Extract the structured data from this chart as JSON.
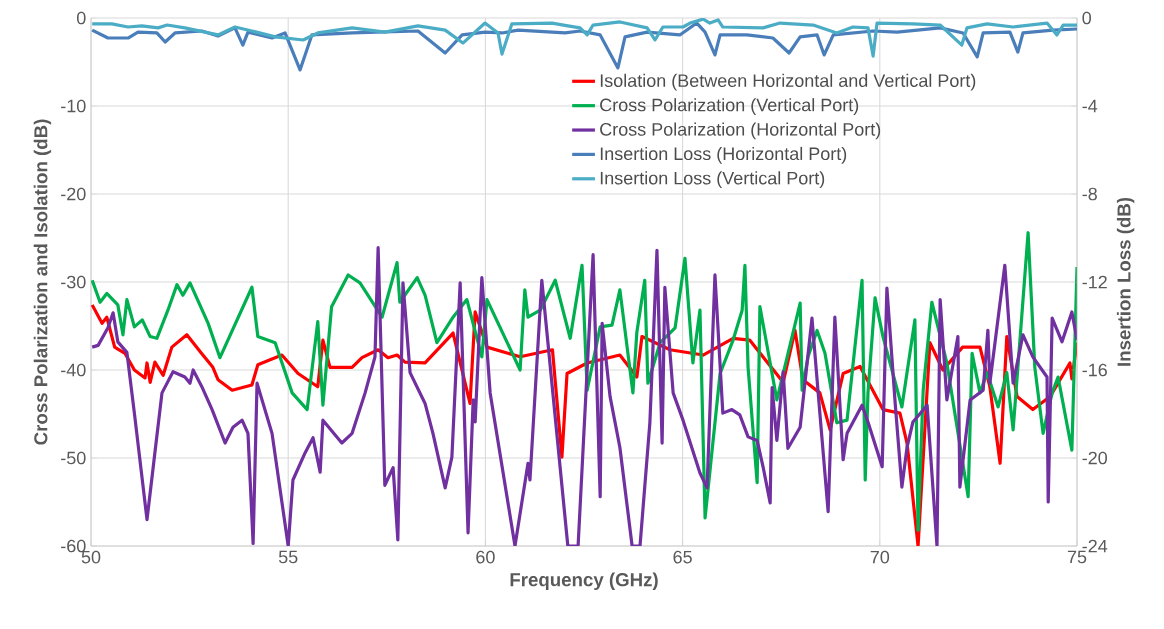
{
  "chart_data": {
    "type": "line",
    "xlabel": "Frequency (GHz)",
    "ylabel": "Cross Polarization and Isolation (dB)",
    "y2label": "Insertion Loss (dB)",
    "xlim": [
      50,
      75
    ],
    "xticks": [
      50,
      55,
      60,
      65,
      70,
      75
    ],
    "ylim": [
      -60,
      0
    ],
    "yticks": [
      -60,
      -50,
      -40,
      -30,
      -20,
      -10,
      0
    ],
    "y2lim": [
      -24,
      0
    ],
    "y2ticks": [
      -24,
      -20,
      -16,
      -12,
      -8,
      -4,
      0
    ],
    "grid": true,
    "legend": "top right",
    "marker": "none",
    "line_style": "solid",
    "series": [
      {
        "name": "Isolation (Between Horizontal and Vertical Port)",
        "color": "#ff0000",
        "x": [
          50.03,
          50.28,
          50.4,
          50.6,
          50.86,
          51.1,
          51.37,
          51.42,
          51.5,
          51.62,
          51.83,
          52.05,
          52.43,
          52.8,
          53.09,
          53.22,
          53.58,
          54.08,
          54.23,
          54.84,
          55.25,
          55.75,
          55.88,
          56.06,
          56.62,
          56.87,
          57.28,
          57.53,
          57.76,
          57.96,
          58.47,
          59.18,
          59.61,
          59.74,
          60.04,
          60.88,
          61.7,
          61.94,
          62.07,
          62.58,
          63.41,
          63.84,
          63.97,
          64.68,
          65.52,
          66.28,
          66.7,
          67.55,
          67.85,
          68.05,
          68.48,
          68.74,
          69.07,
          69.5,
          70.08,
          70.51,
          70.69,
          70.97,
          71.27,
          71.6,
          72.1,
          72.54,
          72.79,
          73.05,
          73.22,
          73.48,
          73.88,
          74.32,
          74.82,
          74.87,
          75
        ],
        "values": [
          -32.6,
          -34.7,
          -34,
          -37.4,
          -38.1,
          -40,
          -40.9,
          -39.2,
          -41.4,
          -39.1,
          -40.6,
          -37.4,
          -36,
          -38.1,
          -39.7,
          -41.1,
          -42.3,
          -41.7,
          -39.4,
          -38.3,
          -40.4,
          -41.9,
          -36.6,
          -39.7,
          -39.7,
          -38.6,
          -37.7,
          -38.6,
          -38.3,
          -39.1,
          -39.2,
          -35.8,
          -43.8,
          -33.4,
          -37.4,
          -38.5,
          -37.7,
          -49.9,
          -40.4,
          -39.2,
          -38.3,
          -40.8,
          -36.2,
          -37.7,
          -38.3,
          -36.4,
          -36.6,
          -41.4,
          -35.5,
          -41.1,
          -42.6,
          -46.8,
          -40.4,
          -39.6,
          -44.5,
          -44.9,
          -48.3,
          -60,
          -36.9,
          -40,
          -37.4,
          -37.4,
          -41.9,
          -50.6,
          -36.2,
          -43,
          -44.5,
          -43,
          -39.2,
          -41,
          -36.9
        ]
      },
      {
        "name": "Cross Polarization (Vertical Port)",
        "color": "#00b050",
        "x": [
          50.03,
          50.23,
          50.4,
          50.68,
          50.81,
          50.91,
          51.1,
          51.3,
          51.5,
          51.67,
          51.95,
          52.18,
          52.33,
          52.51,
          52.97,
          53.27,
          54.08,
          54.23,
          54.67,
          55.1,
          55.48,
          55.75,
          55.88,
          56.1,
          56.52,
          56.82,
          57.38,
          57.76,
          57.83,
          58.27,
          58.47,
          58.77,
          59.18,
          59.53,
          59.91,
          60.04,
          60.88,
          61.0,
          61.08,
          61.39,
          61.77,
          62.15,
          62.45,
          62.58,
          62.91,
          63.21,
          63.41,
          63.74,
          63.84,
          64.04,
          64.12,
          64.43,
          64.81,
          65.06,
          65.26,
          65.44,
          65.57,
          65.95,
          66.28,
          66.51,
          66.58,
          66.66,
          66.89,
          66.96,
          67.39,
          67.98,
          68.03,
          68.18,
          68.41,
          68.61,
          68.91,
          69.17,
          69.55,
          69.63,
          69.7,
          69.88,
          70.08,
          70.56,
          70.89,
          70.97,
          71.1,
          71.32,
          71.7,
          72.24,
          72.34,
          72.54,
          72.72,
          73.0,
          73.22,
          73.38,
          73.76,
          73.93,
          74.14,
          74.37,
          74.52,
          74.87,
          75
        ],
        "values": [
          -29.8,
          -32.3,
          -31.3,
          -32.6,
          -36,
          -32,
          -35.1,
          -34.3,
          -36.2,
          -36.4,
          -33.2,
          -30.3,
          -31.5,
          -30.1,
          -34.7,
          -38.6,
          -30.6,
          -36.2,
          -36.9,
          -42.6,
          -44.5,
          -34.5,
          -44,
          -32.8,
          -29.2,
          -30.1,
          -34,
          -27.8,
          -32.3,
          -29.5,
          -31.5,
          -36.9,
          -34,
          -32,
          -38.5,
          -32,
          -40,
          -30.9,
          -34,
          -33.2,
          -29.8,
          -36.4,
          -28.1,
          -42.3,
          -35.1,
          -34.9,
          -30.9,
          -42.6,
          -35.7,
          -29.8,
          -41.5,
          -36.9,
          -35.2,
          -27.3,
          -39.2,
          -33.2,
          -56.8,
          -40.4,
          -36.6,
          -33.2,
          -28.1,
          -39.7,
          -52.8,
          -32.8,
          -43.4,
          -32.4,
          -42.3,
          -38.5,
          -35.5,
          -38.1,
          -46,
          -45.7,
          -29.8,
          -52.5,
          -42.6,
          -31.8,
          -36.2,
          -44.2,
          -34.3,
          -58.2,
          -42.3,
          -32.3,
          -39.2,
          -54.4,
          -38.1,
          -42.6,
          -40.3,
          -44.2,
          -40.3,
          -46.8,
          -24.4,
          -39.7,
          -47.2,
          -42.6,
          -40.8,
          -49.1,
          -28.3
        ]
      },
      {
        "name": "Cross Polarization (Horizontal Port)",
        "color": "#7030a0",
        "x": [
          50.03,
          50.18,
          50.43,
          50.56,
          50.68,
          50.91,
          51.1,
          51.42,
          51.62,
          51.8,
          52.08,
          52.38,
          52.51,
          52.59,
          52.81,
          53.07,
          53.4,
          53.6,
          53.83,
          53.98,
          54.11,
          54.21,
          54.59,
          55.0,
          55.12,
          55.43,
          55.63,
          55.81,
          55.88,
          56.36,
          56.62,
          56.95,
          57.2,
          57.28,
          57.45,
          57.66,
          57.78,
          57.91,
          58.09,
          58.47,
          58.67,
          58.98,
          59.15,
          59.36,
          59.56,
          59.69,
          59.74,
          59.91,
          60.12,
          60.75,
          61.08,
          61.13,
          61.43,
          62.09,
          62.35,
          62.73,
          62.91,
          62.96,
          63.16,
          63.41,
          63.72,
          63.92,
          64.17,
          64.35,
          64.48,
          64.55,
          64.76,
          65.01,
          65.44,
          65.62,
          65.82,
          66.02,
          66.25,
          66.45,
          66.66,
          66.89,
          67.04,
          67.22,
          67.27,
          67.39,
          67.55,
          67.67,
          67.98,
          68.28,
          68.48,
          68.69,
          68.86,
          69.07,
          69.17,
          69.55,
          69.7,
          70.06,
          70.18,
          70.39,
          70.56,
          70.69,
          70.84,
          71.2,
          71.45,
          71.53,
          71.7,
          71.98,
          72.03,
          72.29,
          72.62,
          72.74,
          72.79,
          73.17,
          73.38,
          73.63,
          73.88,
          74.24,
          74.27,
          74.37,
          74.62,
          74.87,
          75
        ],
        "values": [
          -37.4,
          -37.2,
          -35.2,
          -33.5,
          -36.8,
          -38,
          -44.9,
          -57,
          -49.4,
          -42.6,
          -40.2,
          -40.8,
          -41.5,
          -40,
          -41.9,
          -44.5,
          -48.3,
          -46.5,
          -45.7,
          -47.2,
          -59.7,
          -41.5,
          -47.2,
          -60,
          -52.5,
          -49.4,
          -47.7,
          -51.6,
          -45.7,
          -48.3,
          -47.2,
          -42.6,
          -38.5,
          -26.1,
          -53.1,
          -51.1,
          -59.3,
          -30.1,
          -40.3,
          -43.8,
          -47.2,
          -53.4,
          -49.9,
          -30.1,
          -58.5,
          -43.4,
          -45.9,
          -29.5,
          -42.6,
          -60,
          -50.6,
          -52.5,
          -29.8,
          -60,
          -60,
          -26.9,
          -54.4,
          -34.7,
          -43,
          -48.8,
          -60,
          -60,
          -46,
          -26.4,
          -48.3,
          -30.6,
          -42.6,
          -45.7,
          -51.7,
          -53.4,
          -29.2,
          -44.9,
          -44.5,
          -45.1,
          -47.6,
          -48,
          -51,
          -55.1,
          -42,
          -48,
          -40.2,
          -48.9,
          -46.5,
          -34.1,
          -44.9,
          -56.1,
          -34,
          -50.2,
          -47.2,
          -44,
          -45.9,
          -51,
          -30.7,
          -43.8,
          -53.3,
          -48.8,
          -45.9,
          -44,
          -60,
          -32,
          -43.4,
          -36.2,
          -53.3,
          -43.4,
          -42.3,
          -35.5,
          -41.5,
          -28.1,
          -41.5,
          -36,
          -38.5,
          -40.8,
          -55,
          -34.1,
          -36.8,
          -33.4,
          -36.6
        ]
      },
      {
        "name": "Insertion Loss (Horizontal Port)",
        "color": "#4a7ebb",
        "axis": "y2",
        "x": [
          50.03,
          50.43,
          50.94,
          51.19,
          51.67,
          51.88,
          52.13,
          52.81,
          53.22,
          53.65,
          53.85,
          53.98,
          54.59,
          54.92,
          55.3,
          55.6,
          56.62,
          58.29,
          58.98,
          59.41,
          59.99,
          60.42,
          60.83,
          62.02,
          62.4,
          62.91,
          63.36,
          63.54,
          64.1,
          64.93,
          65.36,
          65.57,
          65.82,
          65.95,
          66.63,
          67.29,
          67.7,
          67.98,
          68.41,
          68.59,
          68.82,
          69.83,
          70.44,
          71.53,
          72.11,
          72.47,
          72.62,
          73.3,
          73.5,
          73.63,
          74.39,
          75
        ],
        "values": [
          -0.55,
          -0.91,
          -0.91,
          -0.64,
          -0.68,
          -1.09,
          -0.68,
          -0.59,
          -0.82,
          -0.45,
          -1.23,
          -0.64,
          -0.91,
          -0.68,
          -2.36,
          -0.77,
          -0.68,
          -0.59,
          -1.59,
          -0.77,
          -0.64,
          -0.68,
          -0.55,
          -0.68,
          -0.59,
          -0.77,
          -2.27,
          -0.86,
          -0.64,
          -0.77,
          -0.23,
          -0.64,
          -1.68,
          -0.77,
          -0.77,
          -0.91,
          -1.59,
          -0.86,
          -0.77,
          -1.68,
          -0.77,
          -0.59,
          -0.64,
          -0.45,
          -0.68,
          -1.77,
          -0.68,
          -0.64,
          -1.55,
          -0.68,
          -0.55,
          -0.5
        ]
      },
      {
        "name": "Insertion Loss (Vertical Port)",
        "color": "#4bacc6",
        "axis": "y2",
        "x": [
          50.03,
          50.53,
          50.94,
          51.29,
          51.7,
          51.93,
          52.38,
          53.22,
          53.65,
          54.08,
          54.67,
          55.38,
          55.75,
          56.62,
          57.45,
          58.29,
          58.98,
          59.43,
          59.99,
          60.32,
          60.42,
          60.67,
          61.69,
          62.09,
          62.4,
          62.58,
          62.73,
          63.41,
          64.1,
          64.3,
          64.5,
          65.01,
          65.19,
          65.52,
          65.69,
          65.9,
          66.02,
          67.04,
          67.47,
          68.31,
          68.91,
          69.32,
          69.7,
          69.83,
          69.93,
          70.84,
          71.53,
          72.08,
          72.21,
          72.72,
          73.38,
          74.24,
          74.49,
          74.65,
          75
        ],
        "values": [
          -0.27,
          -0.27,
          -0.41,
          -0.36,
          -0.45,
          -0.32,
          -0.45,
          -0.77,
          -0.41,
          -0.59,
          -0.86,
          -1,
          -0.68,
          -0.45,
          -0.64,
          -0.36,
          -0.55,
          -1.14,
          -0.23,
          -0.68,
          -1.64,
          -0.27,
          -0.23,
          -0.36,
          -0.45,
          -0.77,
          -0.32,
          -0.18,
          -0.45,
          -1,
          -0.41,
          -0.41,
          -0.23,
          -0.05,
          -0.23,
          -0.09,
          -0.41,
          -0.45,
          -0.23,
          -0.32,
          -0.68,
          -0.41,
          -0.45,
          -1.73,
          -0.23,
          -0.27,
          -0.32,
          -1.23,
          -0.45,
          -0.27,
          -0.41,
          -0.23,
          -0.77,
          -0.32,
          -0.32
        ]
      }
    ]
  }
}
